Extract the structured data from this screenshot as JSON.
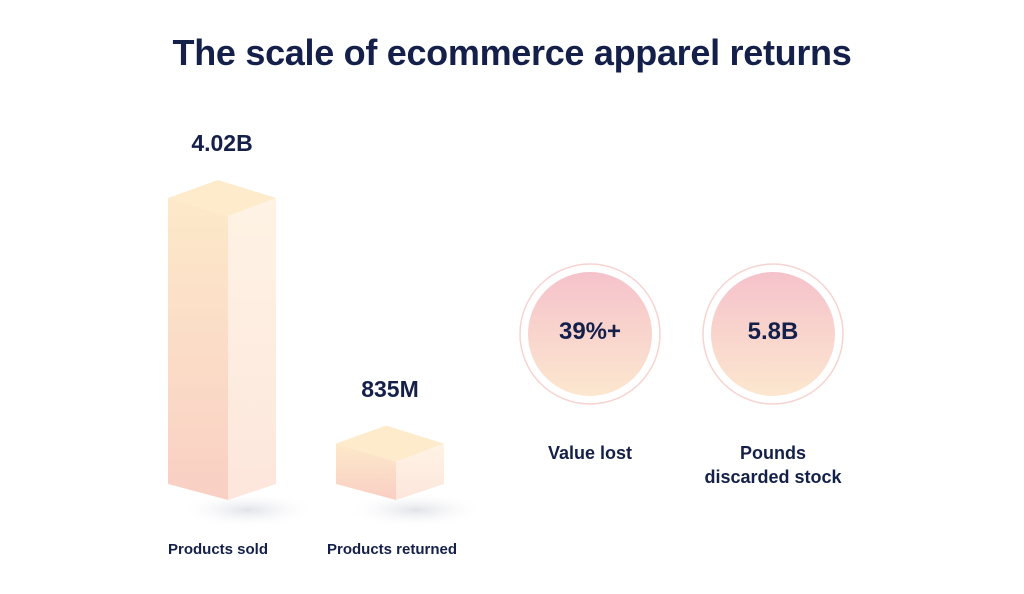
{
  "title": "The scale of ecommerce apparel returns",
  "chart_data": {
    "type": "bar",
    "categories": [
      "Products sold",
      "Products returned"
    ],
    "values": [
      4.02,
      0.835
    ],
    "unit": "B",
    "value_labels": [
      "4.02B",
      "835M"
    ],
    "ylim": [
      0,
      4.02
    ],
    "grid": false,
    "colors": {
      "bar_top": "#fde9c9",
      "bar_front": "#fcd9c6",
      "bar_side": "#fdf0e2",
      "bar_bottom": "#f9cdc3"
    }
  },
  "stats": [
    {
      "value": "39%+",
      "label_lines": [
        "Value lost"
      ],
      "color_top": "#f6c4cc",
      "color_bottom": "#fbe6cd"
    },
    {
      "value": "5.8B",
      "label_lines": [
        "Pounds",
        "discarded stock"
      ],
      "color_top": "#f6c4cc",
      "color_bottom": "#fbe6cd"
    }
  ]
}
